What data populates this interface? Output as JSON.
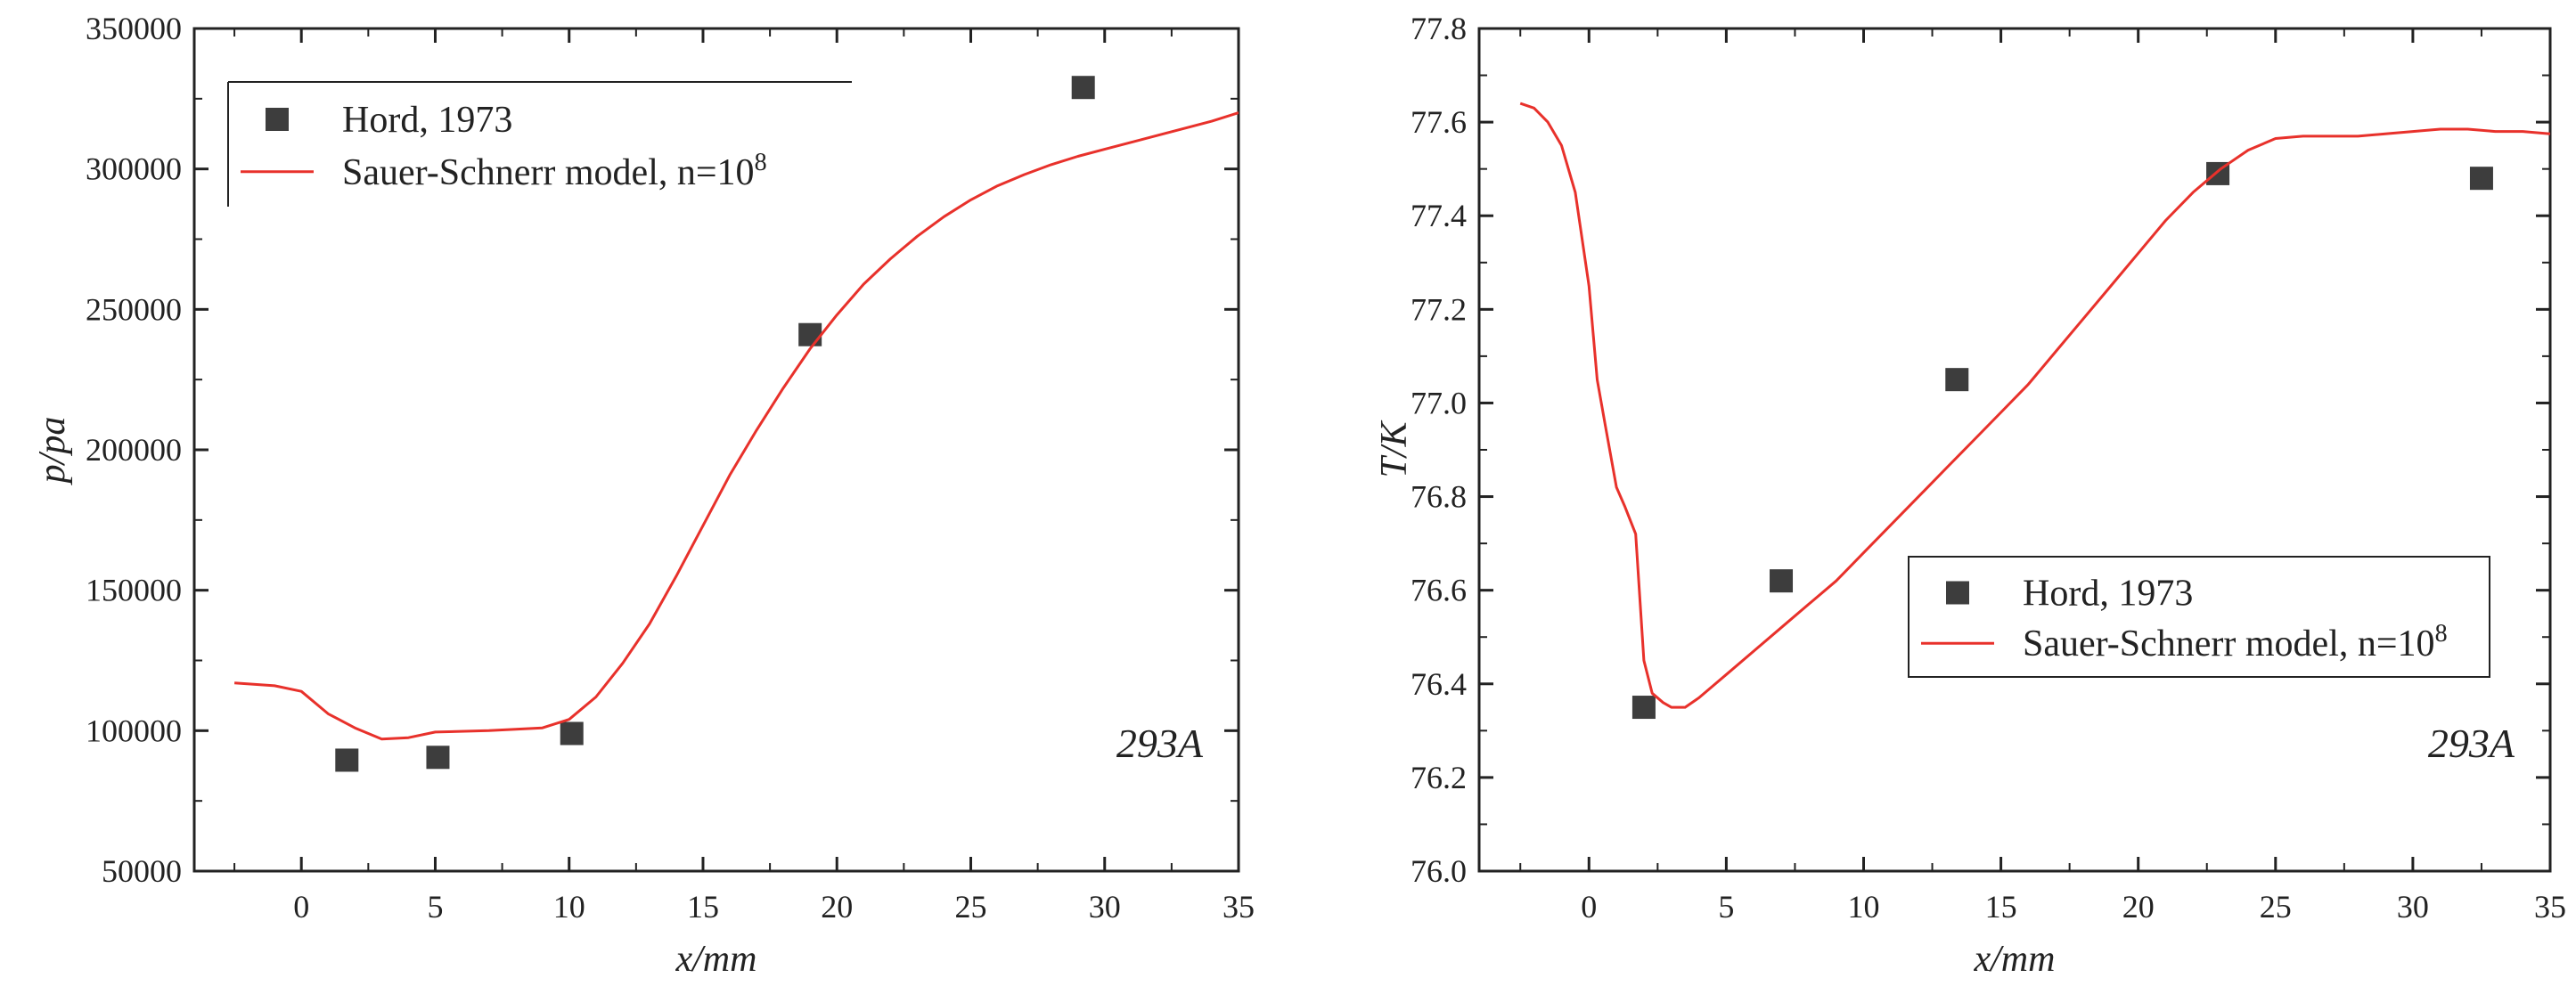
{
  "chart_data": [
    {
      "type": "scatter",
      "xlabel": "x/mm",
      "ylabel": "p/pa",
      "xlim": [
        -4,
        35
      ],
      "ylim": [
        50000,
        350000
      ],
      "xticks": [
        0,
        5,
        10,
        15,
        20,
        25,
        30,
        35
      ],
      "yticks": [
        50000,
        100000,
        150000,
        200000,
        250000,
        300000,
        350000
      ],
      "annotation": "293A",
      "legend_position": "top-left",
      "series": [
        {
          "name": "Hord, 1973",
          "kind": "scatter",
          "color": "#3d3d3d",
          "points": [
            [
              1.7,
              89500
            ],
            [
              5.1,
              90500
            ],
            [
              10.1,
              99000
            ],
            [
              19.0,
              241000
            ],
            [
              29.2,
              329000
            ]
          ]
        },
        {
          "name": "Sauer-Schnerr model, n=10",
          "name_superscript": "8",
          "kind": "line",
          "color": "#e8312b",
          "points": [
            [
              -2.5,
              117000
            ],
            [
              -1,
              116000
            ],
            [
              0,
              114000
            ],
            [
              1,
              106000
            ],
            [
              2,
              101000
            ],
            [
              3,
              97000
            ],
            [
              4,
              97500
            ],
            [
              5,
              99500
            ],
            [
              7,
              100000
            ],
            [
              9,
              101000
            ],
            [
              10,
              104000
            ],
            [
              11,
              112000
            ],
            [
              12,
              124000
            ],
            [
              13,
              138000
            ],
            [
              14,
              155000
            ],
            [
              15,
              173000
            ],
            [
              16,
              191000
            ],
            [
              17,
              207000
            ],
            [
              18,
              222000
            ],
            [
              19,
              236000
            ],
            [
              20,
              248000
            ],
            [
              21,
              259000
            ],
            [
              22,
              268000
            ],
            [
              23,
              276000
            ],
            [
              24,
              283000
            ],
            [
              25,
              289000
            ],
            [
              26,
              294000
            ],
            [
              27,
              298000
            ],
            [
              28,
              301500
            ],
            [
              29,
              304500
            ],
            [
              30,
              307000
            ],
            [
              31,
              309500
            ],
            [
              32,
              312000
            ],
            [
              33,
              314500
            ],
            [
              34,
              317000
            ],
            [
              35,
              320000
            ]
          ]
        }
      ]
    },
    {
      "type": "scatter",
      "xlabel": "x/mm",
      "ylabel": "T/K",
      "xlim": [
        -4,
        35
      ],
      "ylim": [
        76.0,
        77.8
      ],
      "xticks": [
        0,
        5,
        10,
        15,
        20,
        25,
        30,
        35
      ],
      "yticks": [
        76.0,
        76.2,
        76.4,
        76.6,
        76.8,
        77.0,
        77.2,
        77.4,
        77.6,
        77.8
      ],
      "annotation": "293A",
      "legend_position": "right-middle",
      "series": [
        {
          "name": "Hord, 1973",
          "kind": "scatter",
          "color": "#3d3d3d",
          "points": [
            [
              2.0,
              76.35
            ],
            [
              7.0,
              76.62
            ],
            [
              13.4,
              77.05
            ],
            [
              22.9,
              77.49
            ],
            [
              32.5,
              77.48
            ]
          ]
        },
        {
          "name": "Sauer-Schnerr model, n=10",
          "name_superscript": "8",
          "kind": "line",
          "color": "#e8312b",
          "points": [
            [
              -2.5,
              77.64
            ],
            [
              -2.0,
              77.63
            ],
            [
              -1.5,
              77.6
            ],
            [
              -1.0,
              77.55
            ],
            [
              -0.5,
              77.45
            ],
            [
              0.0,
              77.25
            ],
            [
              0.3,
              77.05
            ],
            [
              0.6,
              76.95
            ],
            [
              1.0,
              76.82
            ],
            [
              1.3,
              76.78
            ],
            [
              1.7,
              76.72
            ],
            [
              2.0,
              76.45
            ],
            [
              2.3,
              76.38
            ],
            [
              2.7,
              76.36
            ],
            [
              3.0,
              76.35
            ],
            [
              3.5,
              76.35
            ],
            [
              4.0,
              76.37
            ],
            [
              5.0,
              76.42
            ],
            [
              6.0,
              76.47
            ],
            [
              7.0,
              76.52
            ],
            [
              8.0,
              76.57
            ],
            [
              9.0,
              76.62
            ],
            [
              10.0,
              76.68
            ],
            [
              11.0,
              76.74
            ],
            [
              12.0,
              76.8
            ],
            [
              13.0,
              76.86
            ],
            [
              14.0,
              76.92
            ],
            [
              15.0,
              76.98
            ],
            [
              16.0,
              77.04
            ],
            [
              17.0,
              77.11
            ],
            [
              18.0,
              77.18
            ],
            [
              19.0,
              77.25
            ],
            [
              20.0,
              77.32
            ],
            [
              21.0,
              77.39
            ],
            [
              22.0,
              77.45
            ],
            [
              23.0,
              77.5
            ],
            [
              24.0,
              77.54
            ],
            [
              25.0,
              77.565
            ],
            [
              26.0,
              77.57
            ],
            [
              27.0,
              77.57
            ],
            [
              28.0,
              77.57
            ],
            [
              29.0,
              77.575
            ],
            [
              30.0,
              77.58
            ],
            [
              31.0,
              77.585
            ],
            [
              32.0,
              77.585
            ],
            [
              33.0,
              77.58
            ],
            [
              34.0,
              77.58
            ],
            [
              35.0,
              77.575
            ]
          ]
        }
      ]
    }
  ]
}
